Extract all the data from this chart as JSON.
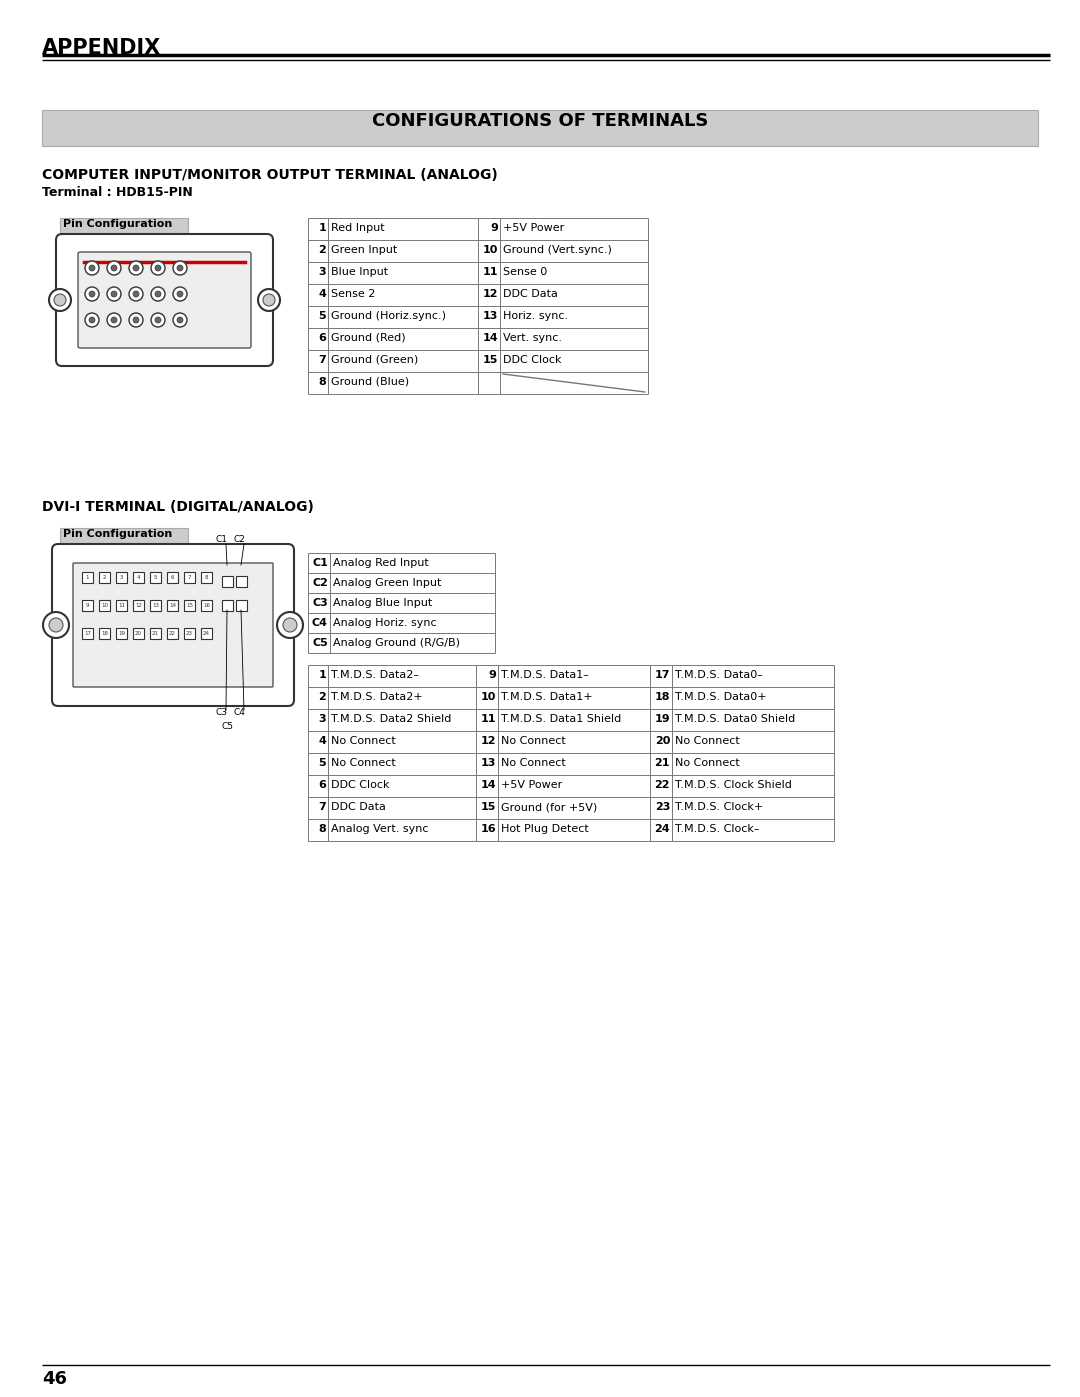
{
  "page_bg": "#ffffff",
  "appendix_title": "APPENDIX",
  "section_title": "CONFIGURATIONS OF TERMINALS",
  "section_title_bg": "#cccccc",
  "subsection1_title": "COMPUTER INPUT/MONITOR OUTPUT TERMINAL (ANALOG)",
  "subsection1_sub": "Terminal : HDB15-PIN",
  "pin_config_label": "Pin Configuration",
  "analog_table": [
    [
      "1",
      "Red Input",
      "9",
      "+5V Power"
    ],
    [
      "2",
      "Green Input",
      "10",
      "Ground (Vert.sync.)"
    ],
    [
      "3",
      "Blue Input",
      "11",
      "Sense 0"
    ],
    [
      "4",
      "Sense 2",
      "12",
      "DDC Data"
    ],
    [
      "5",
      "Ground (Horiz.sync.)",
      "13",
      "Horiz. sync."
    ],
    [
      "6",
      "Ground (Red)",
      "14",
      "Vert. sync."
    ],
    [
      "7",
      "Ground (Green)",
      "15",
      "DDC Clock"
    ],
    [
      "8",
      "Ground (Blue)",
      "",
      ""
    ]
  ],
  "subsection2_title": "DVI-I TERMINAL (DIGITAL/ANALOG)",
  "dvi_c_table": [
    [
      "C1",
      "Analog Red Input"
    ],
    [
      "C2",
      "Analog Green Input"
    ],
    [
      "C3",
      "Analog Blue Input"
    ],
    [
      "C4",
      "Analog Horiz. sync"
    ],
    [
      "C5",
      "Analog Ground (R/G/B)"
    ]
  ],
  "dvi_main_table": [
    [
      "1",
      "T.M.D.S. Data2–",
      "9",
      "T.M.D.S. Data1–",
      "17",
      "T.M.D.S. Data0–"
    ],
    [
      "2",
      "T.M.D.S. Data2+",
      "10",
      "T.M.D.S. Data1+",
      "18",
      "T.M.D.S. Data0+"
    ],
    [
      "3",
      "T.M.D.S. Data2 Shield",
      "11",
      "T.M.D.S. Data1 Shield",
      "19",
      "T.M.D.S. Data0 Shield"
    ],
    [
      "4",
      "No Connect",
      "12",
      "No Connect",
      "20",
      "No Connect"
    ],
    [
      "5",
      "No Connect",
      "13",
      "No Connect",
      "21",
      "No Connect"
    ],
    [
      "6",
      "DDC Clock",
      "14",
      "+5V Power",
      "22",
      "T.M.D.S. Clock Shield"
    ],
    [
      "7",
      "DDC Data",
      "15",
      "Ground (for +5V)",
      "23",
      "T.M.D.S. Clock+"
    ],
    [
      "8",
      "Analog Vert. sync",
      "16",
      "Hot Plug Detect",
      "24",
      "T.M.D.S. Clock–"
    ]
  ],
  "footer_text": "46"
}
